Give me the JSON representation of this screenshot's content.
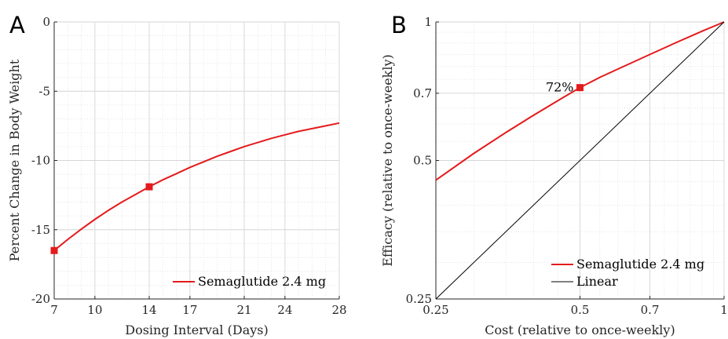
{
  "chart_data": [
    {
      "panel_label": "A",
      "type": "line",
      "xlabel": "Dosing Interval (Days)",
      "ylabel": "Percent Change in Body Weight",
      "xlim": [
        7,
        28
      ],
      "ylim": [
        -20,
        0
      ],
      "xticks": [
        7,
        10,
        14,
        17,
        21,
        24,
        28
      ],
      "yticks": [
        -20,
        -15,
        -10,
        -5,
        0
      ],
      "xtick_labels": [
        "7",
        "10",
        "14",
        "17",
        "21",
        "24",
        "28"
      ],
      "ytick_labels": [
        "-20",
        "-15",
        "-10",
        "-5",
        "0"
      ],
      "grid": true,
      "legend_position": "bottom-right",
      "series": [
        {
          "name": "Semaglutide 2.4 mg",
          "color": "#e41a1c",
          "x": [
            7,
            8,
            9,
            10,
            11,
            12,
            13,
            14,
            15,
            16,
            17,
            18,
            19,
            20,
            21,
            22,
            23,
            24,
            25,
            26,
            27,
            28
          ],
          "y": [
            -16.5,
            -15.7,
            -14.95,
            -14.25,
            -13.6,
            -13.0,
            -12.45,
            -11.9,
            -11.4,
            -10.95,
            -10.5,
            -10.1,
            -9.7,
            -9.35,
            -9.0,
            -8.7,
            -8.4,
            -8.15,
            -7.9,
            -7.7,
            -7.5,
            -7.3
          ],
          "markers": [
            {
              "x": 7,
              "y": -16.5
            },
            {
              "x": 14,
              "y": -11.9
            }
          ]
        }
      ]
    },
    {
      "panel_label": "B",
      "type": "line",
      "xlabel": "Cost (relative to once-weekly)",
      "ylabel": "Efficacy (relative to once-weekly)",
      "xscale": "log",
      "yscale": "log",
      "xlim": [
        0.25,
        1
      ],
      "ylim": [
        0.25,
        1
      ],
      "xticks": [
        0.25,
        0.5,
        0.7,
        1
      ],
      "yticks": [
        0.25,
        0.5,
        0.7,
        1
      ],
      "xtick_labels": [
        "0.25",
        "0.5",
        "0.7",
        "1"
      ],
      "ytick_labels": [
        "0.25",
        "0.5",
        "0.7",
        "1"
      ],
      "grid": true,
      "legend_position": "bottom-right",
      "annotation": {
        "text": "72%",
        "x": 0.5,
        "y": 0.72
      },
      "series": [
        {
          "name": "Semaglutide 2.4 mg",
          "color": "#e41a1c",
          "x": [
            0.25,
            0.3,
            0.35,
            0.4,
            0.45,
            0.5,
            0.55,
            0.6,
            0.7,
            0.8,
            0.9,
            1.0
          ],
          "y": [
            0.453,
            0.518,
            0.575,
            0.627,
            0.675,
            0.72,
            0.758,
            0.79,
            0.85,
            0.905,
            0.955,
            1.0
          ],
          "markers": [
            {
              "x": 0.5,
              "y": 0.72
            }
          ]
        },
        {
          "name": "Linear",
          "color": "#000000",
          "x": [
            0.25,
            1.0
          ],
          "y": [
            0.25,
            1.0
          ]
        }
      ]
    }
  ]
}
